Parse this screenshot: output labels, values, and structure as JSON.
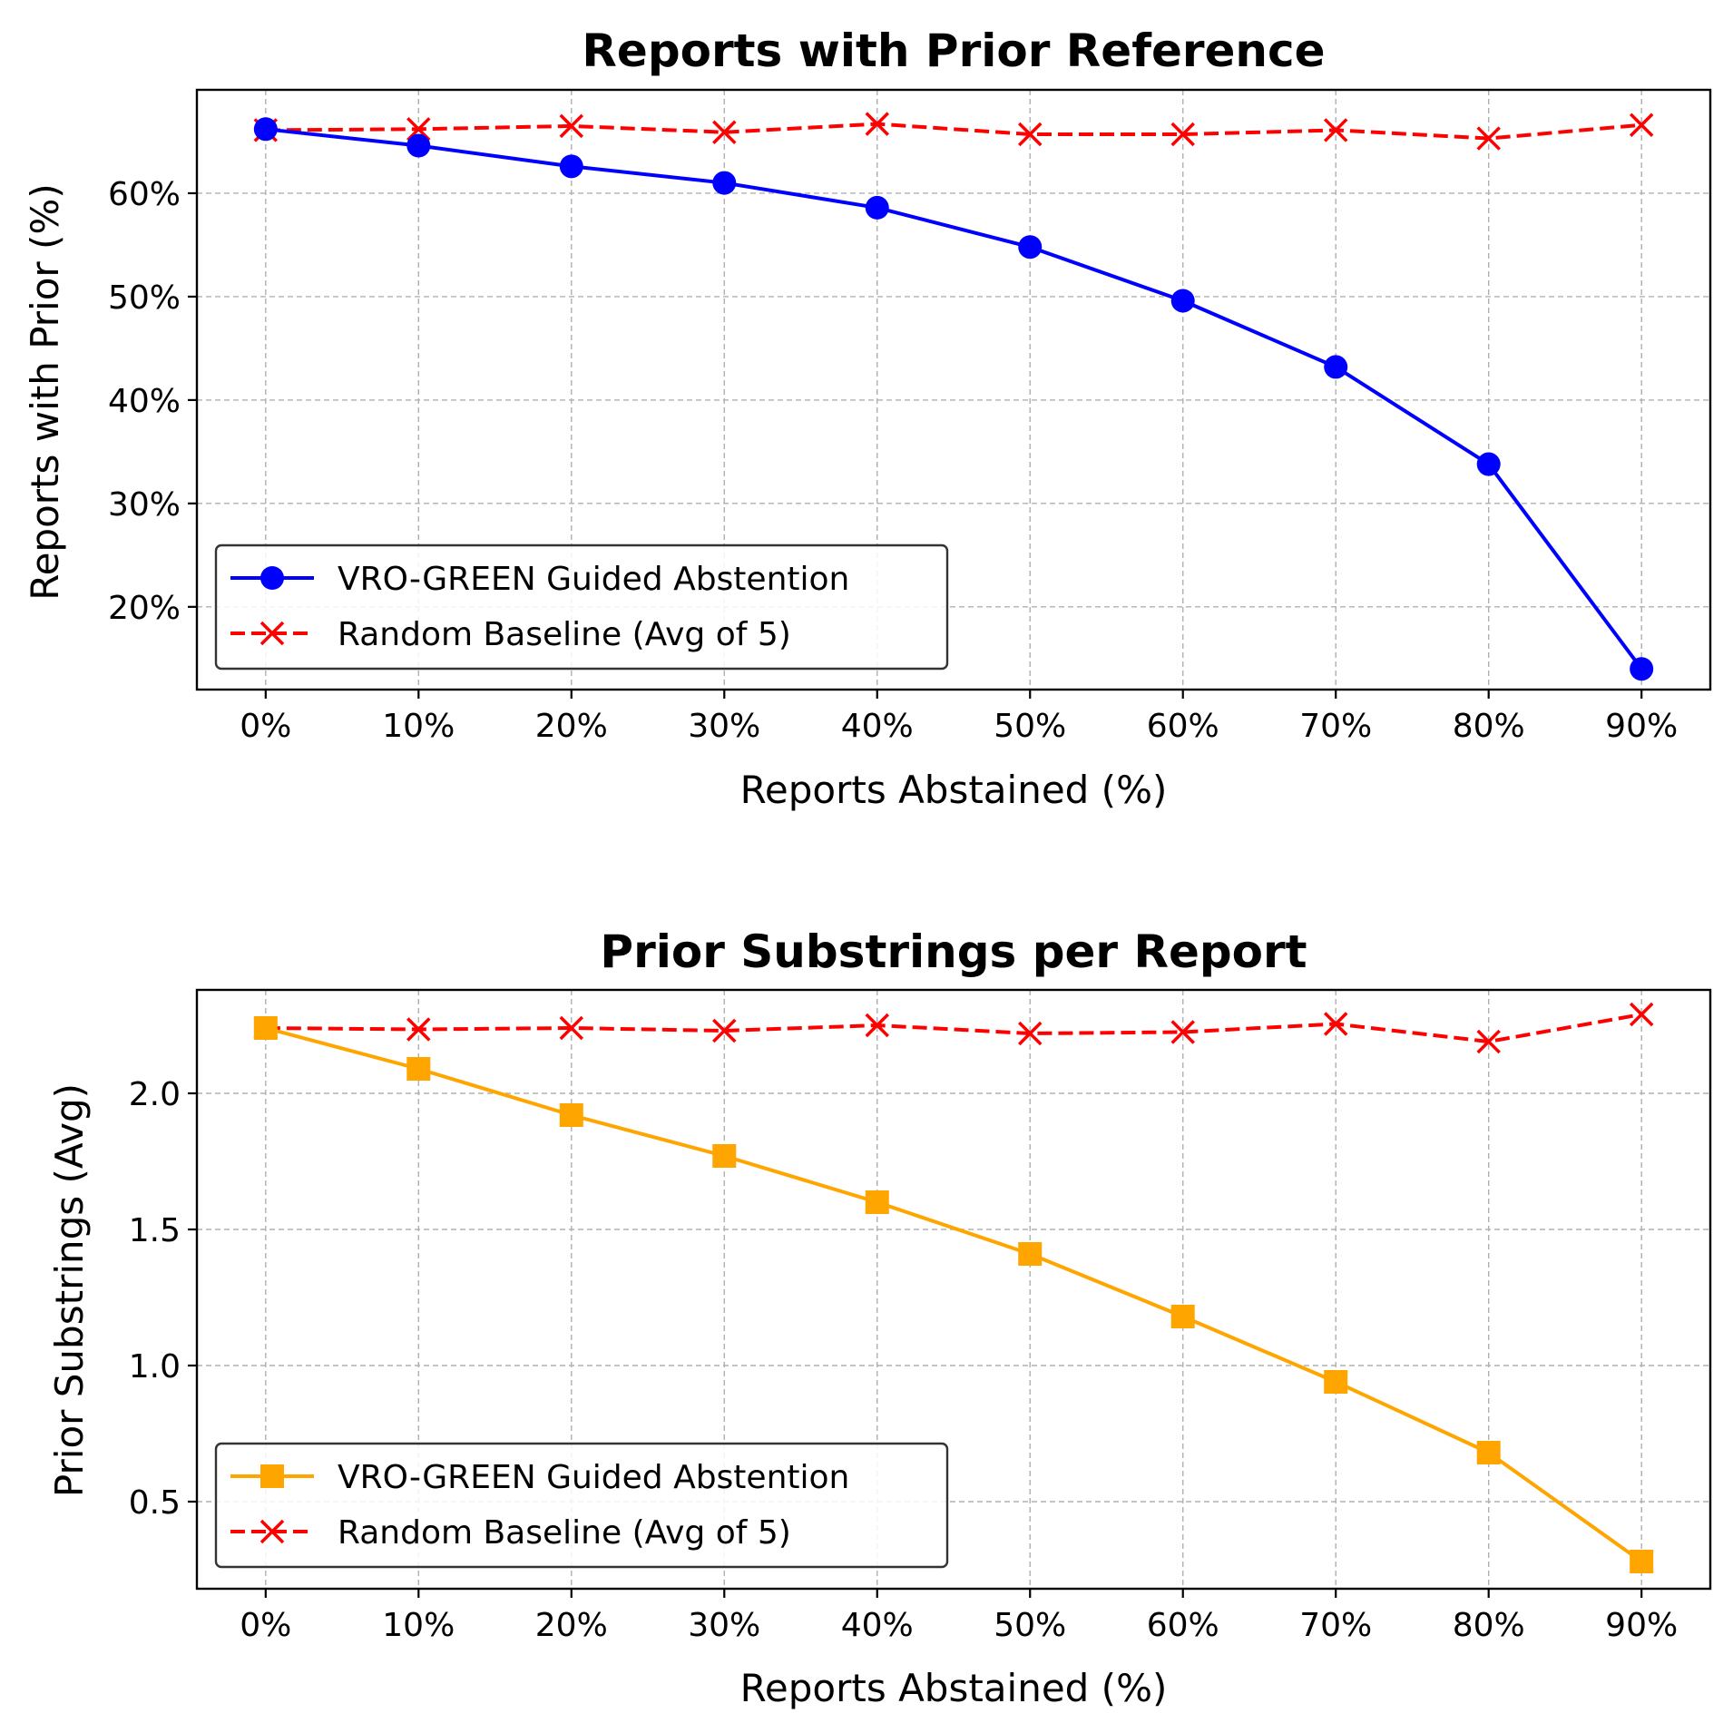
{
  "chart_data": [
    {
      "type": "line",
      "title": "Reports with Prior Reference",
      "xlabel": "Reports Abstained (%)",
      "ylabel": "Reports with Prior (%)",
      "x": [
        0,
        10,
        20,
        30,
        40,
        50,
        60,
        70,
        80,
        90
      ],
      "x_tick_labels": [
        "0%",
        "10%",
        "20%",
        "30%",
        "40%",
        "50%",
        "60%",
        "70%",
        "80%",
        "90%"
      ],
      "xlim": [
        -4.5,
        94.5
      ],
      "ylim": [
        12,
        70
      ],
      "y_ticks": [
        20,
        30,
        40,
        50,
        60
      ],
      "y_tick_labels": [
        "20%",
        "30%",
        "40%",
        "50%",
        "60%"
      ],
      "grid": true,
      "legend_position": "lower-left",
      "series": [
        {
          "name": "VRO-GREEN Guided Abstention",
          "color": "#0000ff",
          "marker": "circle",
          "linestyle": "solid",
          "values": [
            66.2,
            64.6,
            62.6,
            61.0,
            58.6,
            54.8,
            49.6,
            43.2,
            33.8,
            14.0
          ]
        },
        {
          "name": "Random Baseline (Avg of 5)",
          "color": "#ff0000",
          "marker": "x",
          "linestyle": "dashed",
          "values": [
            66.1,
            66.2,
            66.5,
            65.9,
            66.7,
            65.7,
            65.7,
            66.1,
            65.3,
            66.6
          ]
        }
      ]
    },
    {
      "type": "line",
      "title": "Prior Substrings per Report",
      "xlabel": "Reports Abstained (%)",
      "ylabel": "Prior Substrings (Avg)",
      "x": [
        0,
        10,
        20,
        30,
        40,
        50,
        60,
        70,
        80,
        90
      ],
      "x_tick_labels": [
        "0%",
        "10%",
        "20%",
        "30%",
        "40%",
        "50%",
        "60%",
        "70%",
        "80%",
        "90%"
      ],
      "xlim": [
        -4.5,
        94.5
      ],
      "ylim": [
        0.18,
        2.38
      ],
      "y_ticks": [
        0.5,
        1.0,
        1.5,
        2.0
      ],
      "y_tick_labels": [
        "0.5",
        "1.0",
        "1.5",
        "2.0"
      ],
      "grid": true,
      "legend_position": "lower-left",
      "series": [
        {
          "name": "VRO-GREEN Guided Abstention",
          "color": "#ffa500",
          "marker": "square",
          "linestyle": "solid",
          "values": [
            2.24,
            2.09,
            1.92,
            1.77,
            1.6,
            1.41,
            1.18,
            0.94,
            0.68,
            0.28
          ]
        },
        {
          "name": "Random Baseline (Avg of 5)",
          "color": "#ff0000",
          "marker": "x",
          "linestyle": "dashed",
          "values": [
            2.24,
            2.235,
            2.24,
            2.23,
            2.25,
            2.22,
            2.225,
            2.255,
            2.19,
            2.29
          ]
        }
      ]
    }
  ]
}
